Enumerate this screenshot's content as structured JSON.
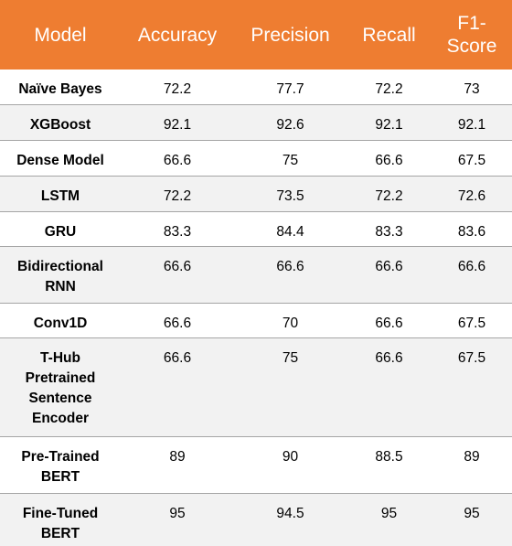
{
  "columns": [
    "Model",
    "Accuracy",
    "Precision",
    "Recall",
    "F1-\nScore"
  ],
  "rows": [
    {
      "model": "Naïve Bayes",
      "accuracy": "72.2",
      "precision": "77.7",
      "recall": "72.2",
      "f1": "73"
    },
    {
      "model": "XGBoost",
      "accuracy": "92.1",
      "precision": "92.6",
      "recall": "92.1",
      "f1": "92.1"
    },
    {
      "model": "Dense Model",
      "accuracy": "66.6",
      "precision": "75",
      "recall": "66.6",
      "f1": "67.5"
    },
    {
      "model": "LSTM",
      "accuracy": "72.2",
      "precision": "73.5",
      "recall": "72.2",
      "f1": "72.6"
    },
    {
      "model": "GRU",
      "accuracy": "83.3",
      "precision": "84.4",
      "recall": "83.3",
      "f1": "83.6"
    },
    {
      "model": "Bidirectional\nRNN",
      "accuracy": "66.6",
      "precision": "66.6",
      "recall": "66.6",
      "f1": "66.6"
    },
    {
      "model": "Conv1D",
      "accuracy": "66.6",
      "precision": "70",
      "recall": "66.6",
      "f1": "67.5"
    },
    {
      "model": "T-Hub\nPretrained\nSentence\nEncoder",
      "accuracy": "66.6",
      "precision": "75",
      "recall": "66.6",
      "f1": "67.5"
    },
    {
      "model": "Pre-Trained\nBERT",
      "accuracy": "89",
      "precision": "90",
      "recall": "88.5",
      "f1": "89"
    },
    {
      "model": "Fine-Tuned\nBERT",
      "accuracy": "95",
      "precision": "94.5",
      "recall": "95",
      "f1": "95"
    }
  ],
  "colors": {
    "header_bg": "#ee7d31",
    "header_text": "#ffffff",
    "stripe": "#f2f2f2",
    "divider": "#a5a5a5"
  }
}
